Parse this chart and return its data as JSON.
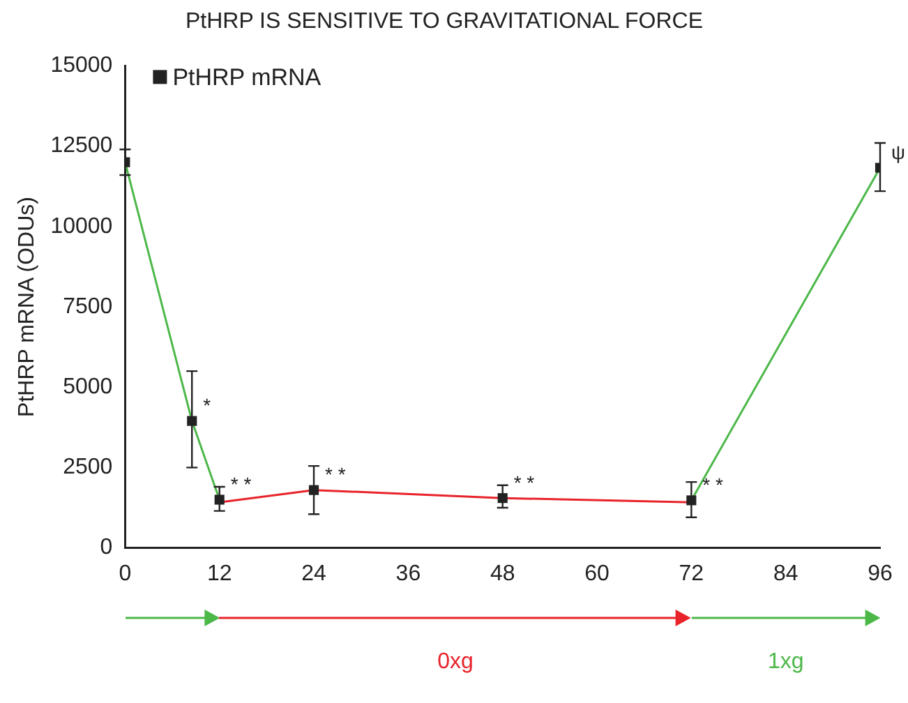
{
  "chart_data": {
    "type": "line",
    "title": "PtHRP IS SENSITIVE TO GRAVITATIONAL FORCE",
    "ylabel": "PtHRP mRNA (ODUs)",
    "xlim": [
      0,
      96
    ],
    "xticks": [
      0,
      12,
      24,
      36,
      48,
      60,
      72,
      84,
      96
    ],
    "ylim": [
      0,
      15000
    ],
    "yticks": [
      0,
      2500,
      5000,
      7500,
      10000,
      12500,
      15000
    ],
    "grid": false,
    "legend": "top left",
    "series": [
      {
        "name": "PtHRP mRNA",
        "type": "scatter",
        "marker": "square",
        "color": "#222222",
        "x": [
          0,
          8.5,
          12,
          24,
          48,
          72,
          96
        ],
        "values": [
          12000,
          3950,
          1500,
          1800,
          1550,
          1480,
          11830
        ],
        "errors": [
          [
            11600,
            12400
          ],
          [
            2500,
            5500
          ],
          [
            1150,
            1900
          ],
          [
            1050,
            2550
          ],
          [
            1250,
            1950
          ],
          [
            950,
            2050
          ],
          [
            11100,
            12600
          ]
        ]
      },
      {
        "type": "line",
        "marker": "none",
        "color": "#4cb848",
        "x": [
          0,
          8.5,
          12
        ],
        "values": [
          12000,
          3950,
          1500
        ]
      },
      {
        "type": "line",
        "marker": "none",
        "color": "#e8232a",
        "x": [
          12,
          24,
          48,
          72
        ],
        "values": [
          1420,
          1800,
          1550,
          1420
        ]
      },
      {
        "type": "line",
        "marker": "none",
        "color": "#4cb848",
        "x": [
          72,
          96
        ],
        "values": [
          1480,
          11830
        ]
      }
    ],
    "annotations": [
      "0xg",
      "1xg",
      {
        "text": "*",
        "x": 8.5,
        "y": 3950
      },
      {
        "text": "* *",
        "x": 12,
        "y": 1500
      },
      {
        "text": "* *",
        "x": 24,
        "y": 1800
      },
      {
        "text": "* *",
        "x": 48,
        "y": 1550
      },
      {
        "text": "* *",
        "x": 72,
        "y": 1480
      },
      {
        "text": "ψ",
        "x": 96,
        "y": 11830
      }
    ]
  }
}
